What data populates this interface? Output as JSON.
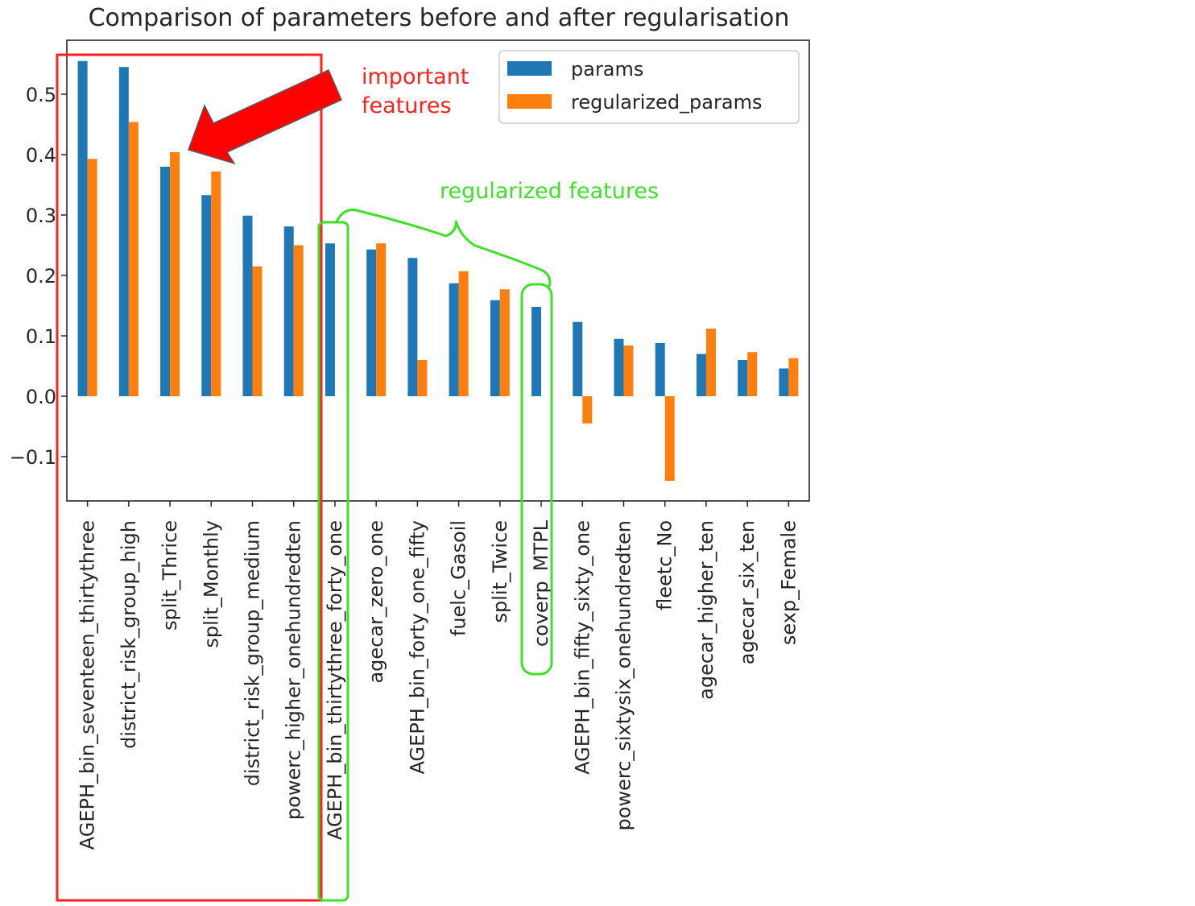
{
  "chart_data": {
    "type": "bar",
    "title": "Comparison of parameters before and after regularisation",
    "xlabel": "",
    "ylabel": "",
    "ylim": [
      -0.17,
      0.59
    ],
    "yticks": [
      -0.1,
      0.0,
      0.1,
      0.2,
      0.3,
      0.4,
      0.5
    ],
    "ytick_labels": [
      "−0.1",
      "0.0",
      "0.1",
      "0.2",
      "0.3",
      "0.4",
      "0.5"
    ],
    "grid": false,
    "legend_position": "top-right",
    "categories": [
      "AGEPH_bin_seventeen_thirtythree",
      "district_risk_group_high",
      "split_Thrice",
      "split_Monthly",
      "district_risk_group_medium",
      "powerc_higher_onehundredten",
      "AGEPH_bin_thirtythree_forty_one",
      "agecar_zero_one",
      "AGEPH_bin_forty_one_fifty",
      "fuelc_Gasoil",
      "split_Twice",
      "coverp_MTPL",
      "AGEPH_bin_fifty_sixty_one",
      "powerc_sixtysix_onehundredten",
      "fleetc_No",
      "agecar_higher_ten",
      "agecar_six_ten",
      "sexp_Female"
    ],
    "series": [
      {
        "name": "params",
        "color": "#1f77b4",
        "values": [
          0.555,
          0.545,
          0.38,
          0.333,
          0.299,
          0.281,
          0.253,
          0.243,
          0.229,
          0.187,
          0.159,
          0.148,
          0.123,
          0.095,
          0.088,
          0.07,
          0.06,
          0.046
        ]
      },
      {
        "name": "regularized_params",
        "color": "#ff7f0e",
        "values": [
          0.393,
          0.454,
          0.404,
          0.372,
          0.215,
          0.25,
          0.0,
          0.253,
          0.06,
          0.207,
          0.177,
          0.0,
          -0.045,
          0.084,
          -0.14,
          0.112,
          0.073,
          0.063
        ]
      }
    ],
    "annotations": {
      "important_line1": "important",
      "important_line2": "features",
      "regularized": "regularized features",
      "important_color": "#ff2020",
      "regularized_color": "#3fdf2a"
    }
  }
}
